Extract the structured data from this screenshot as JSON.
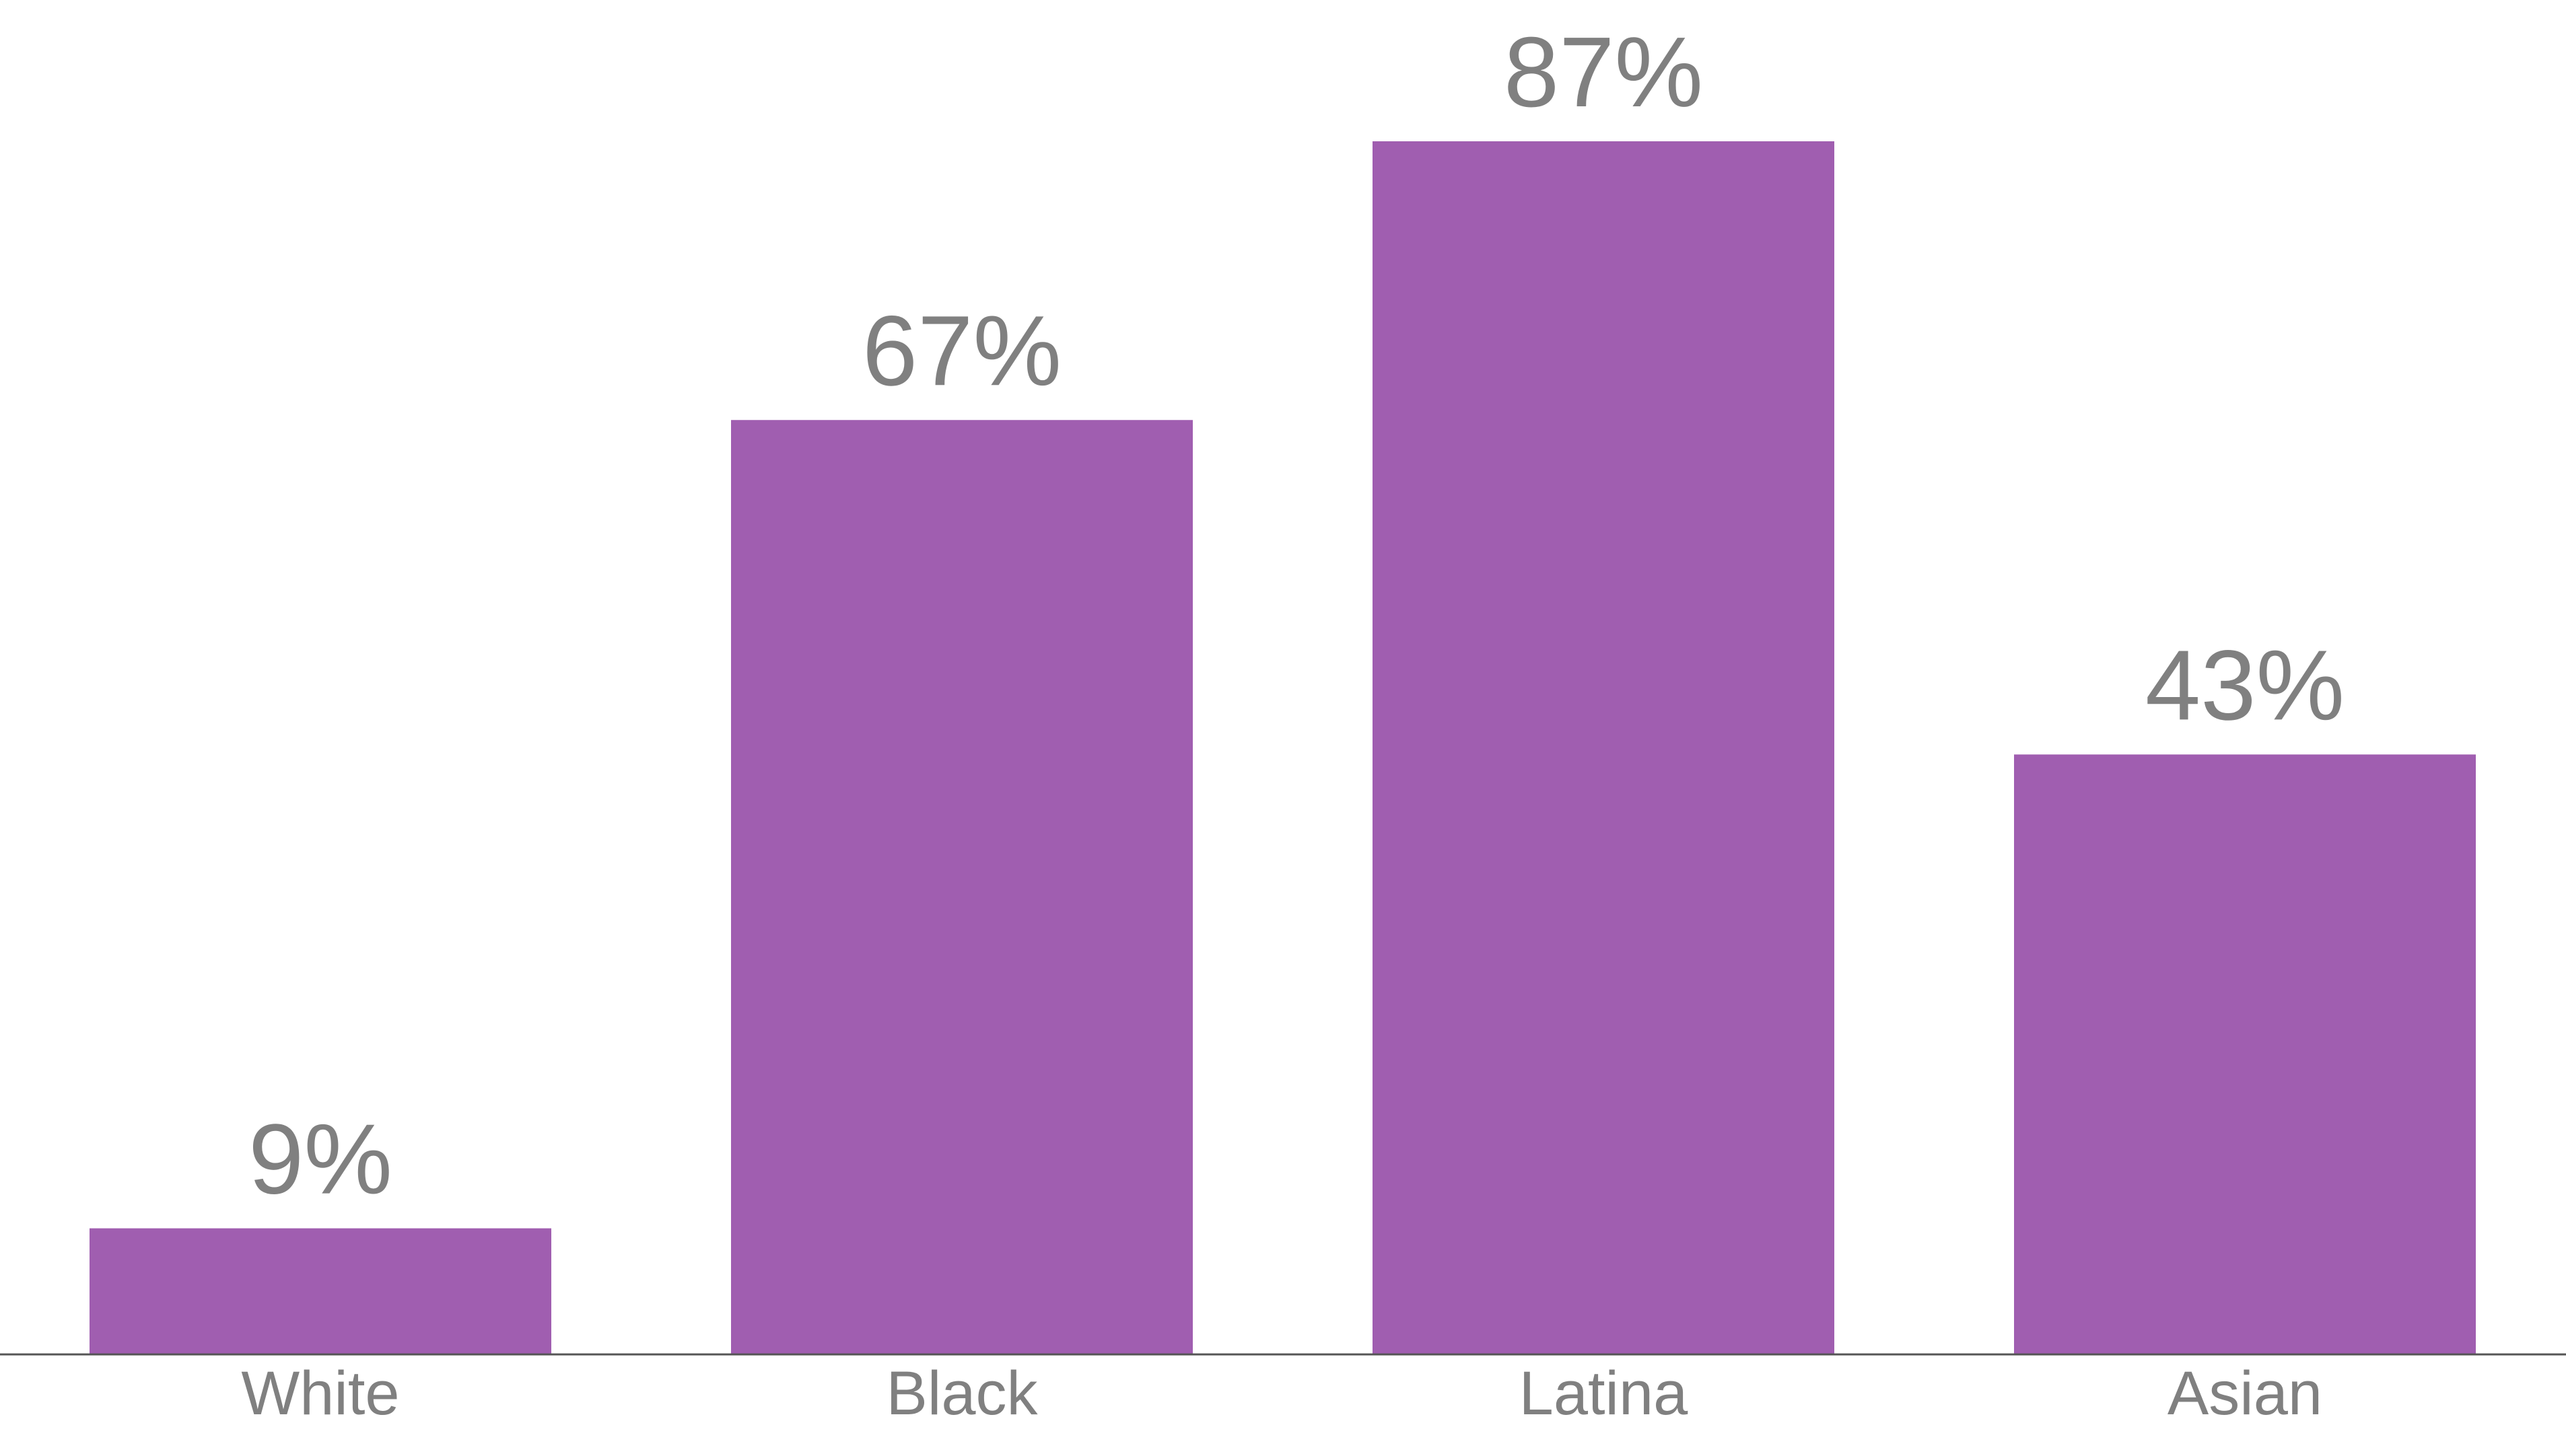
{
  "chart_data": {
    "type": "bar",
    "categories": [
      "White",
      "Black",
      "Latina",
      "Asian"
    ],
    "values": [
      9,
      67,
      87,
      43
    ],
    "data_labels": [
      "9%",
      "67%",
      "87%",
      "43%"
    ],
    "ylim": [
      0,
      100
    ],
    "grid": false,
    "bar_color": "#A05EB0",
    "label_color": "#808080",
    "axis_color": "#555555"
  }
}
